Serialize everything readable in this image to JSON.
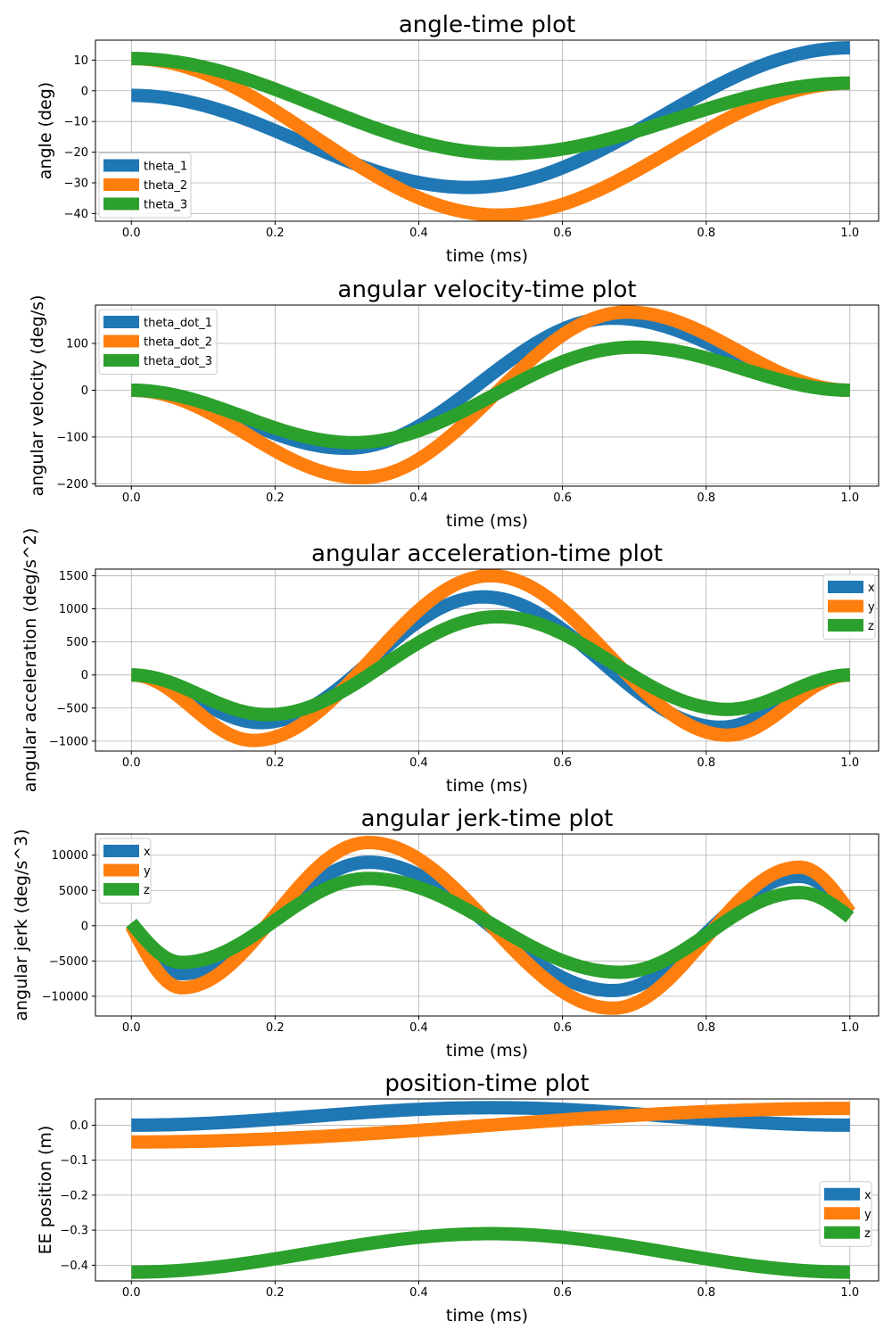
{
  "colors": {
    "c1": "#1f77b4",
    "c2": "#ff7f0e",
    "c3": "#2ca02c",
    "grid": "#b0b0b0",
    "axis": "#000000"
  },
  "chart_data": [
    {
      "type": "line",
      "title": "angle-time plot",
      "xlabel": "time (ms)",
      "ylabel": "angle (deg)",
      "xlim": [
        -0.05,
        1.04
      ],
      "ylim": [
        -42.5,
        16.5
      ],
      "xticks": [
        0.0,
        0.2,
        0.4,
        0.6,
        0.8,
        1.0
      ],
      "xtick_labels": [
        "0.0",
        "0.2",
        "0.4",
        "0.6",
        "0.8",
        "1.0"
      ],
      "yticks": [
        10,
        0,
        -10,
        -20,
        -30,
        -40
      ],
      "ytick_labels": [
        "10",
        "0",
        "−10",
        "−20",
        "−30",
        "−40"
      ],
      "legend_position": "lower-left",
      "grid": true,
      "series": [
        {
          "name": "theta_1",
          "color": "#1f77b4",
          "start": -1.5,
          "end": 14,
          "shape": "dip",
          "peak_value": -31.5,
          "peak_x": 0.47
        },
        {
          "name": "theta_2",
          "color": "#ff7f0e",
          "start": 10.5,
          "end": 2.5,
          "shape": "dip",
          "peak_value": -40.5,
          "peak_x": 0.51
        },
        {
          "name": "theta_3",
          "color": "#2ca02c",
          "start": 10.5,
          "end": 2.5,
          "shape": "dip",
          "peak_value": -20.5,
          "peak_x": 0.52
        }
      ]
    },
    {
      "type": "line",
      "title": "angular velocity-time plot",
      "xlabel": "time (ms)",
      "ylabel": "angular velocity (deg/s)",
      "xlim": [
        -0.05,
        1.04
      ],
      "ylim": [
        -205,
        182
      ],
      "xticks": [
        0.0,
        0.2,
        0.4,
        0.6,
        0.8,
        1.0
      ],
      "xtick_labels": [
        "0.0",
        "0.2",
        "0.4",
        "0.6",
        "0.8",
        "1.0"
      ],
      "yticks": [
        100,
        0,
        -100,
        -200
      ],
      "ytick_labels": [
        "100",
        "0",
        "−100",
        "−200"
      ],
      "legend_position": "upper-left",
      "grid": true,
      "series": [
        {
          "name": "theta_dot_1",
          "color": "#1f77b4",
          "shape": "velocity",
          "min_value": -124,
          "max_value": 154,
          "min_x": 0.3,
          "max_x": 0.67
        },
        {
          "name": "theta_dot_2",
          "color": "#ff7f0e",
          "shape": "velocity",
          "min_value": -187,
          "max_value": 167,
          "min_x": 0.32,
          "max_x": 0.69
        },
        {
          "name": "theta_dot_3",
          "color": "#2ca02c",
          "shape": "velocity",
          "min_value": -112,
          "max_value": 92,
          "min_x": 0.31,
          "max_x": 0.7
        }
      ]
    },
    {
      "type": "line",
      "title": "angular acceleration-time plot",
      "xlabel": "time (ms)",
      "ylabel": "angular acceleration (deg/s^2)",
      "xlim": [
        -0.05,
        1.04
      ],
      "ylim": [
        -1150,
        1600
      ],
      "xticks": [
        0.0,
        0.2,
        0.4,
        0.6,
        0.8,
        1.0
      ],
      "xtick_labels": [
        "0.0",
        "0.2",
        "0.4",
        "0.6",
        "0.8",
        "1.0"
      ],
      "yticks": [
        1500,
        1000,
        500,
        0,
        -500,
        -1000
      ],
      "ytick_labels": [
        "1500",
        "1000",
        "500",
        "0",
        "−500",
        "−1000"
      ],
      "legend_position": "upper-right",
      "grid": true,
      "series": [
        {
          "name": "x",
          "color": "#1f77b4",
          "shape": "acceleration",
          "min1": -720,
          "max": 1180,
          "min2": -790,
          "x_min1": 0.18,
          "x_max": 0.49,
          "x_min2": 0.82
        },
        {
          "name": "y",
          "color": "#ff7f0e",
          "shape": "acceleration",
          "min1": -990,
          "max": 1500,
          "min2": -910,
          "x_min1": 0.17,
          "x_max": 0.5,
          "x_min2": 0.83
        },
        {
          "name": "z",
          "color": "#2ca02c",
          "shape": "acceleration",
          "min1": -600,
          "max": 880,
          "min2": -520,
          "x_min1": 0.19,
          "x_max": 0.51,
          "x_min2": 0.83
        }
      ]
    },
    {
      "type": "line",
      "title": "angular jerk-time plot",
      "xlabel": "time (ms)",
      "ylabel": "angular jerk (deg/s^3)",
      "xlim": [
        -0.05,
        1.04
      ],
      "ylim": [
        -12800,
        13000
      ],
      "xticks": [
        0.0,
        0.2,
        0.4,
        0.6,
        0.8,
        1.0
      ],
      "xtick_labels": [
        "0.0",
        "0.2",
        "0.4",
        "0.6",
        "0.8",
        "1.0"
      ],
      "yticks": [
        10000,
        5000,
        0,
        -5000,
        -10000
      ],
      "ytick_labels": [
        "10000",
        "5000",
        "0",
        "−5000",
        "−10000"
      ],
      "legend_position": "upper-left",
      "grid": true,
      "series": [
        {
          "name": "x",
          "color": "#1f77b4",
          "shape": "jerk",
          "start": 0,
          "end": 1800,
          "extrema": [
            [
              0.07,
              -6800
            ],
            [
              0.33,
              9000
            ],
            [
              0.67,
              -9200
            ],
            [
              0.93,
              7000
            ]
          ]
        },
        {
          "name": "y",
          "color": "#ff7f0e",
          "shape": "jerk",
          "start": 0,
          "end": 1900,
          "extrema": [
            [
              0.07,
              -8800
            ],
            [
              0.33,
              11800
            ],
            [
              0.67,
              -11700
            ],
            [
              0.93,
              8300
            ]
          ]
        },
        {
          "name": "z",
          "color": "#2ca02c",
          "shape": "jerk",
          "start": 400,
          "end": 1200,
          "extrema": [
            [
              0.07,
              -5200
            ],
            [
              0.33,
              6700
            ],
            [
              0.68,
              -6600
            ],
            [
              0.93,
              4700
            ]
          ]
        }
      ]
    },
    {
      "type": "line",
      "title": "position-time plot",
      "xlabel": "time (ms)",
      "ylabel": "EE position (m)",
      "xlim": [
        -0.05,
        1.04
      ],
      "ylim": [
        -0.445,
        0.075
      ],
      "xticks": [
        0.0,
        0.2,
        0.4,
        0.6,
        0.8,
        1.0
      ],
      "xtick_labels": [
        "0.0",
        "0.2",
        "0.4",
        "0.6",
        "0.8",
        "1.0"
      ],
      "yticks": [
        0.0,
        -0.1,
        -0.2,
        -0.3,
        -0.4
      ],
      "ytick_labels": [
        "0.0",
        "−0.1",
        "−0.2",
        "−0.3",
        "−0.4"
      ],
      "legend_position": "center-right",
      "grid": true,
      "series": [
        {
          "name": "x",
          "color": "#1f77b4",
          "shape": "bump",
          "base": 0.0,
          "peak_value": 0.05
        },
        {
          "name": "y",
          "color": "#ff7f0e",
          "shape": "ramp",
          "start": -0.048,
          "end": 0.048
        },
        {
          "name": "z",
          "color": "#2ca02c",
          "shape": "bump",
          "base": -0.42,
          "peak_value": -0.31
        }
      ]
    }
  ]
}
